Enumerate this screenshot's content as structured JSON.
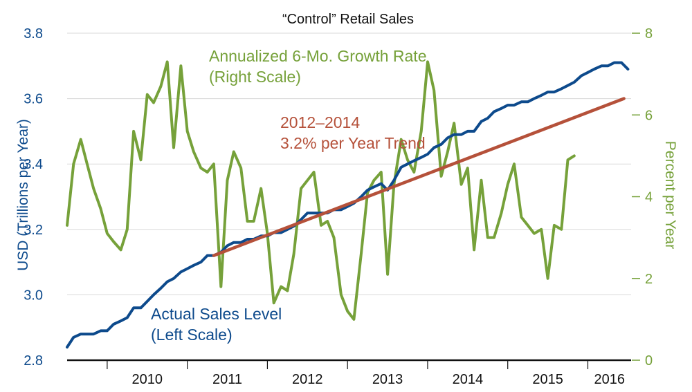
{
  "chart_data": {
    "type": "line",
    "title": "“Control” Retail Sales",
    "x_unit": "year",
    "xlim": [
      2009.5,
      2016.54
    ],
    "x_ticks": [
      "2010",
      "2011",
      "2012",
      "2013",
      "2014",
      "2015",
      "2016"
    ],
    "left_axis": {
      "label": "USD (Trillions per Year)",
      "ylim": [
        2.8,
        3.8
      ],
      "ticks": [
        "2.8",
        "3.0",
        "3.2",
        "3.4",
        "3.6",
        "3.8"
      ],
      "color": "#0d4a8c"
    },
    "right_axis": {
      "label": "Percent per Year",
      "ylim": [
        0,
        8
      ],
      "ticks": [
        "0",
        "2",
        "4",
        "6",
        "8"
      ],
      "color": "#76a13a"
    },
    "grid": true,
    "series": [
      {
        "name": "Actual Sales Level (Left Scale)",
        "axis": "left",
        "color": "#0d4a8c",
        "points": [
          [
            2009.5,
            2.84
          ],
          [
            2009.58,
            2.87
          ],
          [
            2009.67,
            2.88
          ],
          [
            2009.75,
            2.88
          ],
          [
            2009.83,
            2.88
          ],
          [
            2009.92,
            2.89
          ],
          [
            2010.0,
            2.89
          ],
          [
            2010.08,
            2.91
          ],
          [
            2010.17,
            2.92
          ],
          [
            2010.25,
            2.93
          ],
          [
            2010.33,
            2.96
          ],
          [
            2010.42,
            2.96
          ],
          [
            2010.5,
            2.98
          ],
          [
            2010.58,
            3.0
          ],
          [
            2010.67,
            3.02
          ],
          [
            2010.75,
            3.04
          ],
          [
            2010.83,
            3.05
          ],
          [
            2010.92,
            3.07
          ],
          [
            2011.0,
            3.08
          ],
          [
            2011.08,
            3.09
          ],
          [
            2011.17,
            3.1
          ],
          [
            2011.25,
            3.12
          ],
          [
            2011.33,
            3.12
          ],
          [
            2011.42,
            3.13
          ],
          [
            2011.5,
            3.15
          ],
          [
            2011.58,
            3.16
          ],
          [
            2011.67,
            3.16
          ],
          [
            2011.75,
            3.17
          ],
          [
            2011.83,
            3.17
          ],
          [
            2011.92,
            3.18
          ],
          [
            2012.0,
            3.18
          ],
          [
            2012.08,
            3.19
          ],
          [
            2012.17,
            3.19
          ],
          [
            2012.25,
            3.2
          ],
          [
            2012.33,
            3.21
          ],
          [
            2012.42,
            3.23
          ],
          [
            2012.5,
            3.25
          ],
          [
            2012.58,
            3.25
          ],
          [
            2012.67,
            3.25
          ],
          [
            2012.75,
            3.25
          ],
          [
            2012.83,
            3.26
          ],
          [
            2012.92,
            3.26
          ],
          [
            2013.0,
            3.27
          ],
          [
            2013.08,
            3.28
          ],
          [
            2013.17,
            3.3
          ],
          [
            2013.25,
            3.32
          ],
          [
            2013.33,
            3.33
          ],
          [
            2013.42,
            3.34
          ],
          [
            2013.5,
            3.32
          ],
          [
            2013.58,
            3.35
          ],
          [
            2013.67,
            3.39
          ],
          [
            2013.75,
            3.4
          ],
          [
            2013.83,
            3.41
          ],
          [
            2013.92,
            3.42
          ],
          [
            2014.0,
            3.43
          ],
          [
            2014.08,
            3.45
          ],
          [
            2014.17,
            3.46
          ],
          [
            2014.25,
            3.48
          ],
          [
            2014.33,
            3.49
          ],
          [
            2014.42,
            3.49
          ],
          [
            2014.5,
            3.5
          ],
          [
            2014.58,
            3.5
          ],
          [
            2014.67,
            3.53
          ],
          [
            2014.75,
            3.54
          ],
          [
            2014.83,
            3.56
          ],
          [
            2014.92,
            3.57
          ],
          [
            2015.0,
            3.58
          ],
          [
            2015.08,
            3.58
          ],
          [
            2015.17,
            3.59
          ],
          [
            2015.25,
            3.59
          ],
          [
            2015.33,
            3.6
          ],
          [
            2015.42,
            3.61
          ],
          [
            2015.5,
            3.62
          ],
          [
            2015.58,
            3.62
          ],
          [
            2015.67,
            3.63
          ],
          [
            2015.75,
            3.64
          ],
          [
            2015.83,
            3.65
          ],
          [
            2015.92,
            3.67
          ],
          [
            2016.0,
            3.68
          ],
          [
            2016.08,
            3.69
          ],
          [
            2016.17,
            3.7
          ],
          [
            2016.25,
            3.7
          ],
          [
            2016.33,
            3.71
          ],
          [
            2016.42,
            3.71
          ],
          [
            2016.5,
            3.69
          ]
        ]
      },
      {
        "name": "Annualized 6-Mo. Growth Rate (Right Scale)",
        "axis": "right",
        "color": "#76a13a",
        "points": [
          [
            2009.5,
            3.3
          ],
          [
            2009.58,
            4.8
          ],
          [
            2009.67,
            5.4
          ],
          [
            2009.75,
            4.8
          ],
          [
            2009.83,
            4.2
          ],
          [
            2009.92,
            3.7
          ],
          [
            2010.0,
            3.1
          ],
          [
            2010.08,
            2.9
          ],
          [
            2010.17,
            2.7
          ],
          [
            2010.25,
            3.2
          ],
          [
            2010.33,
            5.6
          ],
          [
            2010.42,
            4.9
          ],
          [
            2010.5,
            6.5
          ],
          [
            2010.58,
            6.3
          ],
          [
            2010.67,
            6.7
          ],
          [
            2010.75,
            7.3
          ],
          [
            2010.83,
            5.2
          ],
          [
            2010.92,
            7.2
          ],
          [
            2011.0,
            5.6
          ],
          [
            2011.08,
            5.1
          ],
          [
            2011.17,
            4.7
          ],
          [
            2011.25,
            4.6
          ],
          [
            2011.33,
            4.8
          ],
          [
            2011.42,
            1.8
          ],
          [
            2011.5,
            4.4
          ],
          [
            2011.58,
            5.1
          ],
          [
            2011.67,
            4.7
          ],
          [
            2011.75,
            3.4
          ],
          [
            2011.83,
            3.4
          ],
          [
            2011.92,
            4.2
          ],
          [
            2012.0,
            3.1
          ],
          [
            2012.08,
            1.4
          ],
          [
            2012.17,
            1.8
          ],
          [
            2012.25,
            1.7
          ],
          [
            2012.33,
            2.6
          ],
          [
            2012.42,
            4.2
          ],
          [
            2012.5,
            4.4
          ],
          [
            2012.58,
            4.6
          ],
          [
            2012.67,
            3.3
          ],
          [
            2012.75,
            3.4
          ],
          [
            2012.83,
            3.0
          ],
          [
            2012.92,
            1.6
          ],
          [
            2013.0,
            1.2
          ],
          [
            2013.08,
            1.0
          ],
          [
            2013.17,
            2.6
          ],
          [
            2013.25,
            4.1
          ],
          [
            2013.33,
            4.4
          ],
          [
            2013.42,
            4.6
          ],
          [
            2013.5,
            2.1
          ],
          [
            2013.58,
            4.3
          ],
          [
            2013.67,
            5.4
          ],
          [
            2013.75,
            4.9
          ],
          [
            2013.83,
            4.6
          ],
          [
            2013.92,
            5.6
          ],
          [
            2014.0,
            7.3
          ],
          [
            2014.08,
            6.6
          ],
          [
            2014.17,
            4.5
          ],
          [
            2014.25,
            5.1
          ],
          [
            2014.33,
            5.8
          ],
          [
            2014.42,
            4.3
          ],
          [
            2014.5,
            4.7
          ],
          [
            2014.58,
            2.7
          ],
          [
            2014.67,
            4.4
          ],
          [
            2014.75,
            3.0
          ],
          [
            2014.83,
            3.0
          ],
          [
            2014.92,
            3.6
          ],
          [
            2015.0,
            4.3
          ],
          [
            2015.08,
            4.8
          ],
          [
            2015.17,
            3.5
          ],
          [
            2015.25,
            3.3
          ],
          [
            2015.33,
            3.1
          ],
          [
            2015.42,
            3.2
          ],
          [
            2015.5,
            2.0
          ],
          [
            2015.58,
            3.3
          ],
          [
            2015.67,
            3.2
          ],
          [
            2015.75,
            4.9
          ],
          [
            2015.83,
            5.0
          ]
        ]
      },
      {
        "name": "2012–2014 3.2% per Year Trend",
        "axis": "left",
        "color": "#b5513a",
        "points": [
          [
            2011.33,
            3.12
          ],
          [
            2016.45,
            3.6
          ]
        ]
      }
    ],
    "annotations": {
      "growth_line1": "Annualized 6-Mo. Growth Rate",
      "growth_line2": "(Right Scale)",
      "trend_line1": "2012–2014",
      "trend_line2": "3.2% per Year Trend",
      "sales_line1": "Actual Sales Level",
      "sales_line2": "(Left Scale)"
    }
  }
}
